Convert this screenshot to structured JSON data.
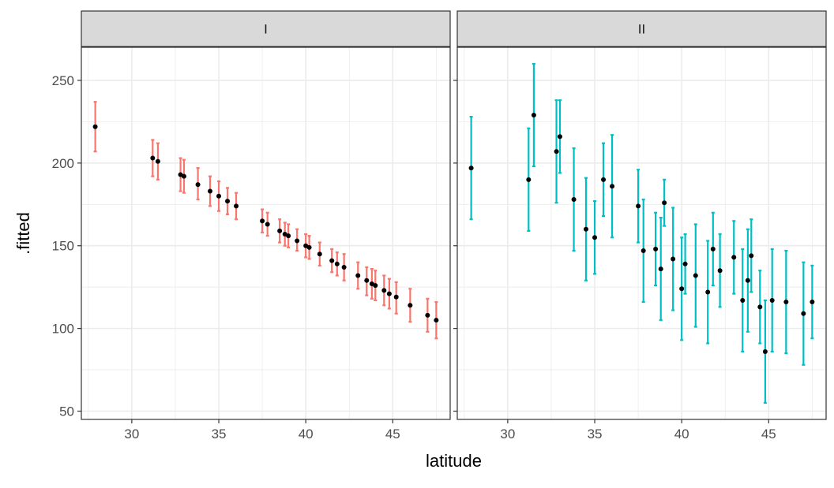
{
  "chart_data": {
    "type": "scatter",
    "subtype": "point-with-errorbars, faceted",
    "xlabel": "latitude",
    "ylabel": ".fitted",
    "xlim": [
      27.1,
      48.3
    ],
    "ylim": [
      45,
      270
    ],
    "x_ticks": [
      30,
      35,
      40,
      45
    ],
    "y_ticks": [
      50,
      100,
      150,
      200,
      250
    ],
    "grid": true,
    "legend": "none",
    "colors": {
      "I": "#F8766D",
      "II": "#00BFC4",
      "point": "#000000",
      "strip_bg": "#D9D9D9",
      "grid": "#EBEBEB",
      "border": "#333333"
    },
    "panels": [
      {
        "label": "I",
        "color": "#F8766D",
        "points": [
          {
            "x": 27.9,
            "y": 222,
            "lo": 207,
            "hi": 237
          },
          {
            "x": 31.2,
            "y": 203,
            "lo": 192,
            "hi": 214
          },
          {
            "x": 31.5,
            "y": 201,
            "lo": 190,
            "hi": 212
          },
          {
            "x": 32.8,
            "y": 193,
            "lo": 183,
            "hi": 203
          },
          {
            "x": 33.0,
            "y": 192,
            "lo": 182,
            "hi": 202
          },
          {
            "x": 33.8,
            "y": 187,
            "lo": 178,
            "hi": 197
          },
          {
            "x": 34.5,
            "y": 183,
            "lo": 174,
            "hi": 192
          },
          {
            "x": 35.0,
            "y": 180,
            "lo": 171,
            "hi": 189
          },
          {
            "x": 35.5,
            "y": 177,
            "lo": 169,
            "hi": 185
          },
          {
            "x": 36.0,
            "y": 174,
            "lo": 166,
            "hi": 182
          },
          {
            "x": 37.5,
            "y": 165,
            "lo": 158,
            "hi": 172
          },
          {
            "x": 37.8,
            "y": 163,
            "lo": 156,
            "hi": 170
          },
          {
            "x": 38.5,
            "y": 159,
            "lo": 152,
            "hi": 166
          },
          {
            "x": 38.8,
            "y": 157,
            "lo": 150,
            "hi": 164
          },
          {
            "x": 39.0,
            "y": 156,
            "lo": 149,
            "hi": 163
          },
          {
            "x": 39.5,
            "y": 153,
            "lo": 147,
            "hi": 160
          },
          {
            "x": 40.0,
            "y": 150,
            "lo": 143,
            "hi": 157
          },
          {
            "x": 40.2,
            "y": 149,
            "lo": 142,
            "hi": 156
          },
          {
            "x": 40.8,
            "y": 145,
            "lo": 138,
            "hi": 152
          },
          {
            "x": 41.5,
            "y": 141,
            "lo": 134,
            "hi": 148
          },
          {
            "x": 41.8,
            "y": 139,
            "lo": 132,
            "hi": 146
          },
          {
            "x": 42.2,
            "y": 137,
            "lo": 129,
            "hi": 145
          },
          {
            "x": 43.0,
            "y": 132,
            "lo": 124,
            "hi": 140
          },
          {
            "x": 43.5,
            "y": 129,
            "lo": 120,
            "hi": 137
          },
          {
            "x": 43.8,
            "y": 127,
            "lo": 118,
            "hi": 136
          },
          {
            "x": 44.0,
            "y": 126,
            "lo": 117,
            "hi": 135
          },
          {
            "x": 44.5,
            "y": 123,
            "lo": 114,
            "hi": 132
          },
          {
            "x": 44.8,
            "y": 121,
            "lo": 112,
            "hi": 130
          },
          {
            "x": 45.2,
            "y": 119,
            "lo": 109,
            "hi": 128
          },
          {
            "x": 46.0,
            "y": 114,
            "lo": 104,
            "hi": 124
          },
          {
            "x": 47.0,
            "y": 108,
            "lo": 98,
            "hi": 118
          },
          {
            "x": 47.5,
            "y": 105,
            "lo": 94,
            "hi": 116
          }
        ]
      },
      {
        "label": "II",
        "color": "#00BFC4",
        "points": [
          {
            "x": 27.9,
            "y": 197,
            "lo": 166,
            "hi": 228
          },
          {
            "x": 31.2,
            "y": 190,
            "lo": 159,
            "hi": 221
          },
          {
            "x": 31.5,
            "y": 229,
            "lo": 198,
            "hi": 260
          },
          {
            "x": 32.8,
            "y": 207,
            "lo": 176,
            "hi": 238
          },
          {
            "x": 33.0,
            "y": 216,
            "lo": 194,
            "hi": 238
          },
          {
            "x": 33.8,
            "y": 178,
            "lo": 147,
            "hi": 209
          },
          {
            "x": 34.5,
            "y": 160,
            "lo": 129,
            "hi": 191
          },
          {
            "x": 35.0,
            "y": 155,
            "lo": 133,
            "hi": 177
          },
          {
            "x": 35.5,
            "y": 190,
            "lo": 168,
            "hi": 212
          },
          {
            "x": 36.0,
            "y": 186,
            "lo": 155,
            "hi": 217
          },
          {
            "x": 37.5,
            "y": 174,
            "lo": 152,
            "hi": 196
          },
          {
            "x": 37.8,
            "y": 147,
            "lo": 116,
            "hi": 178
          },
          {
            "x": 38.5,
            "y": 148,
            "lo": 126,
            "hi": 170
          },
          {
            "x": 38.8,
            "y": 136,
            "lo": 105,
            "hi": 167
          },
          {
            "x": 39.0,
            "y": 176,
            "lo": 162,
            "hi": 190
          },
          {
            "x": 39.5,
            "y": 142,
            "lo": 111,
            "hi": 173
          },
          {
            "x": 40.0,
            "y": 124,
            "lo": 93,
            "hi": 155
          },
          {
            "x": 40.2,
            "y": 139,
            "lo": 121,
            "hi": 157
          },
          {
            "x": 40.8,
            "y": 132,
            "lo": 101,
            "hi": 163
          },
          {
            "x": 41.5,
            "y": 122,
            "lo": 91,
            "hi": 153
          },
          {
            "x": 41.8,
            "y": 148,
            "lo": 126,
            "hi": 170
          },
          {
            "x": 42.2,
            "y": 135,
            "lo": 113,
            "hi": 157
          },
          {
            "x": 43.0,
            "y": 143,
            "lo": 121,
            "hi": 165
          },
          {
            "x": 43.5,
            "y": 117,
            "lo": 86,
            "hi": 148
          },
          {
            "x": 43.8,
            "y": 129,
            "lo": 98,
            "hi": 160
          },
          {
            "x": 44.0,
            "y": 144,
            "lo": 122,
            "hi": 166
          },
          {
            "x": 44.5,
            "y": 113,
            "lo": 91,
            "hi": 135
          },
          {
            "x": 44.8,
            "y": 86,
            "lo": 55,
            "hi": 117
          },
          {
            "x": 45.2,
            "y": 117,
            "lo": 86,
            "hi": 148
          },
          {
            "x": 46.0,
            "y": 116,
            "lo": 85,
            "hi": 147
          },
          {
            "x": 47.0,
            "y": 109,
            "lo": 78,
            "hi": 140
          },
          {
            "x": 47.5,
            "y": 116,
            "lo": 94,
            "hi": 138
          }
        ]
      }
    ]
  }
}
